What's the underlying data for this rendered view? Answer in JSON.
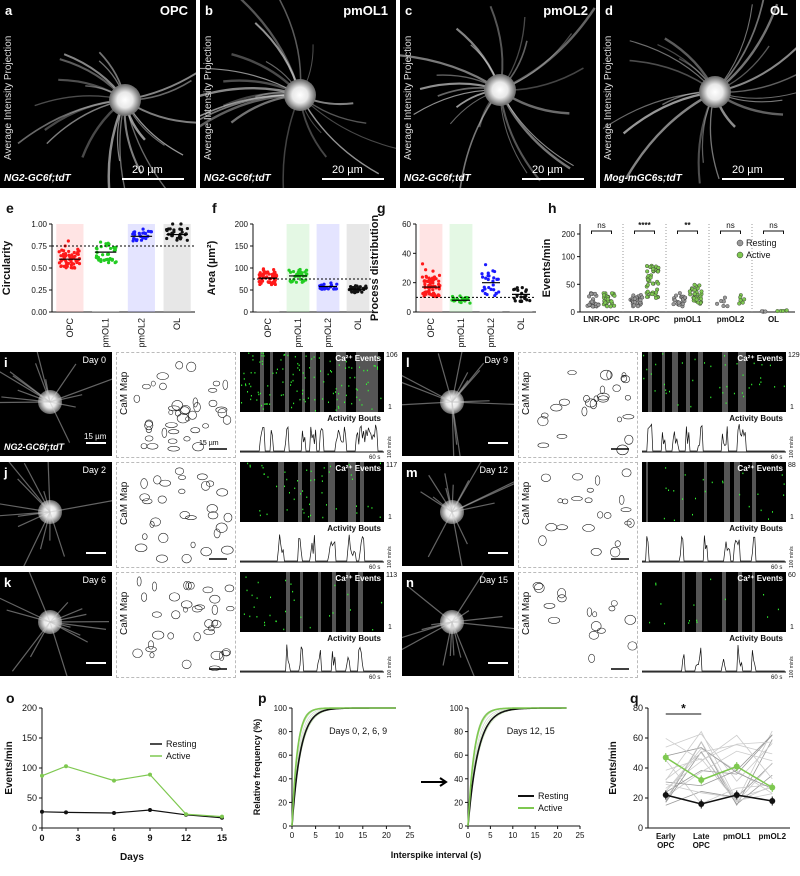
{
  "top_row": {
    "panels": [
      {
        "letter": "a",
        "cell": "OPC",
        "genotype": "NG2-GC6f;tdT",
        "scale": "20 µm"
      },
      {
        "letter": "b",
        "cell": "pmOL1",
        "genotype": "NG2-GC6f;tdT",
        "scale": "20 µm"
      },
      {
        "letter": "c",
        "cell": "pmOL2",
        "genotype": "NG2-GC6f;tdT",
        "scale": "20 µm"
      },
      {
        "letter": "d",
        "cell": "OL",
        "genotype": "Mog-mGC6s;tdT",
        "scale": "20 µm"
      }
    ],
    "side_label": "Average Intensity Projection"
  },
  "panel_e": {
    "letter": "e",
    "ylabel": "Circularity",
    "yticks": [
      "0.00",
      "0.25",
      "0.50",
      "0.75",
      "1.00"
    ],
    "categories": [
      "OPC",
      "pmOL1",
      "pmOL2",
      "OL"
    ]
  },
  "panel_f": {
    "letter": "f",
    "ylabel": "Area (µm²)",
    "yticks": [
      "0",
      "50",
      "100",
      "150",
      "200"
    ],
    "categories": [
      "OPC",
      "pmOL1",
      "pmOL2",
      "OL"
    ]
  },
  "panel_g": {
    "letter": "g",
    "ylabel": "Process distribution",
    "yticks": [
      "0",
      "20",
      "40",
      "60"
    ],
    "categories": [
      "OPC",
      "pmOL1",
      "pmOL2",
      "OL"
    ]
  },
  "panel_h": {
    "letter": "h",
    "ylabel": "Events/min",
    "yticks": [
      "0",
      "50",
      "100",
      "200"
    ],
    "categories": [
      "LNR-OPC",
      "LR-OPC",
      "pmOL1",
      "pmOL2",
      "OL"
    ],
    "sig": [
      "ns",
      "****",
      "**",
      "ns",
      "ns"
    ],
    "legend": [
      "Resting",
      "Active"
    ]
  },
  "timecourse": [
    {
      "letter": "i",
      "day": "Day 0",
      "max": "106",
      "genotype": "NG2-GC6f;tdT",
      "scale1": "15 µm",
      "scale2": "15 µm"
    },
    {
      "letter": "j",
      "day": "Day 2",
      "max": "117"
    },
    {
      "letter": "k",
      "day": "Day 6",
      "max": "113"
    },
    {
      "letter": "l",
      "day": "Day 9",
      "max": "129"
    },
    {
      "letter": "m",
      "day": "Day 12",
      "max": "88"
    },
    {
      "letter": "n",
      "day": "Day 15",
      "max": "60"
    }
  ],
  "timecourse_labels": {
    "camap": "CaM Map",
    "events": "Ca²⁺ Events",
    "bouts": "Activity Bouts",
    "time": "60 s",
    "rate": "100 min/s",
    "one": "1"
  },
  "panel_o": {
    "letter": "o",
    "chart_data": {
      "type": "line",
      "x": [
        0,
        2,
        6,
        9,
        12,
        15
      ],
      "series": [
        {
          "name": "Resting",
          "values": [
            27,
            26,
            25,
            30,
            22,
            17
          ]
        },
        {
          "name": "Active",
          "values": [
            87,
            103,
            79,
            89,
            23,
            19
          ]
        }
      ],
      "xlabel": "Days",
      "ylabel": "Events/min",
      "xticks": [
        "0",
        "3",
        "6",
        "9",
        "12",
        "15"
      ],
      "yticks": [
        "0",
        "50",
        "100",
        "150",
        "200"
      ],
      "ylim": [
        0,
        200
      ]
    }
  },
  "panel_p": {
    "letter": "p",
    "ylabel": "Relative frequency (%)",
    "xlabel": "Interspike interval (s)",
    "left_note": "Days 0, 2, 6, 9",
    "right_note": "Days 12, 15",
    "xticks": [
      "0",
      "5",
      "10",
      "15",
      "20",
      "25"
    ],
    "yticks": [
      "0",
      "20",
      "40",
      "60",
      "80",
      "100"
    ],
    "legend": [
      "Resting",
      "Active"
    ]
  },
  "panel_q": {
    "letter": "q",
    "ylabel": "Events/min",
    "yticks": [
      "0",
      "20",
      "40",
      "60",
      "80"
    ],
    "categories": [
      "Early OPC",
      "Late OPC",
      "pmOL1",
      "pmOL2"
    ],
    "sig": "*",
    "chart_data": {
      "type": "line",
      "categories": [
        "Early OPC",
        "Late OPC",
        "pmOL1",
        "pmOL2"
      ],
      "series": [
        {
          "name": "Resting",
          "values": [
            22,
            16,
            22,
            18
          ]
        },
        {
          "name": "Active",
          "values": [
            47,
            32,
            41,
            27
          ]
        }
      ],
      "ylim": [
        0,
        80
      ]
    }
  },
  "colors": {
    "OPC": "#ff1a1a",
    "pmOL1": "#22cc22",
    "pmOL2": "#1a1aff",
    "OL": "#111111",
    "active": "#7ec850",
    "resting": "#111111"
  }
}
